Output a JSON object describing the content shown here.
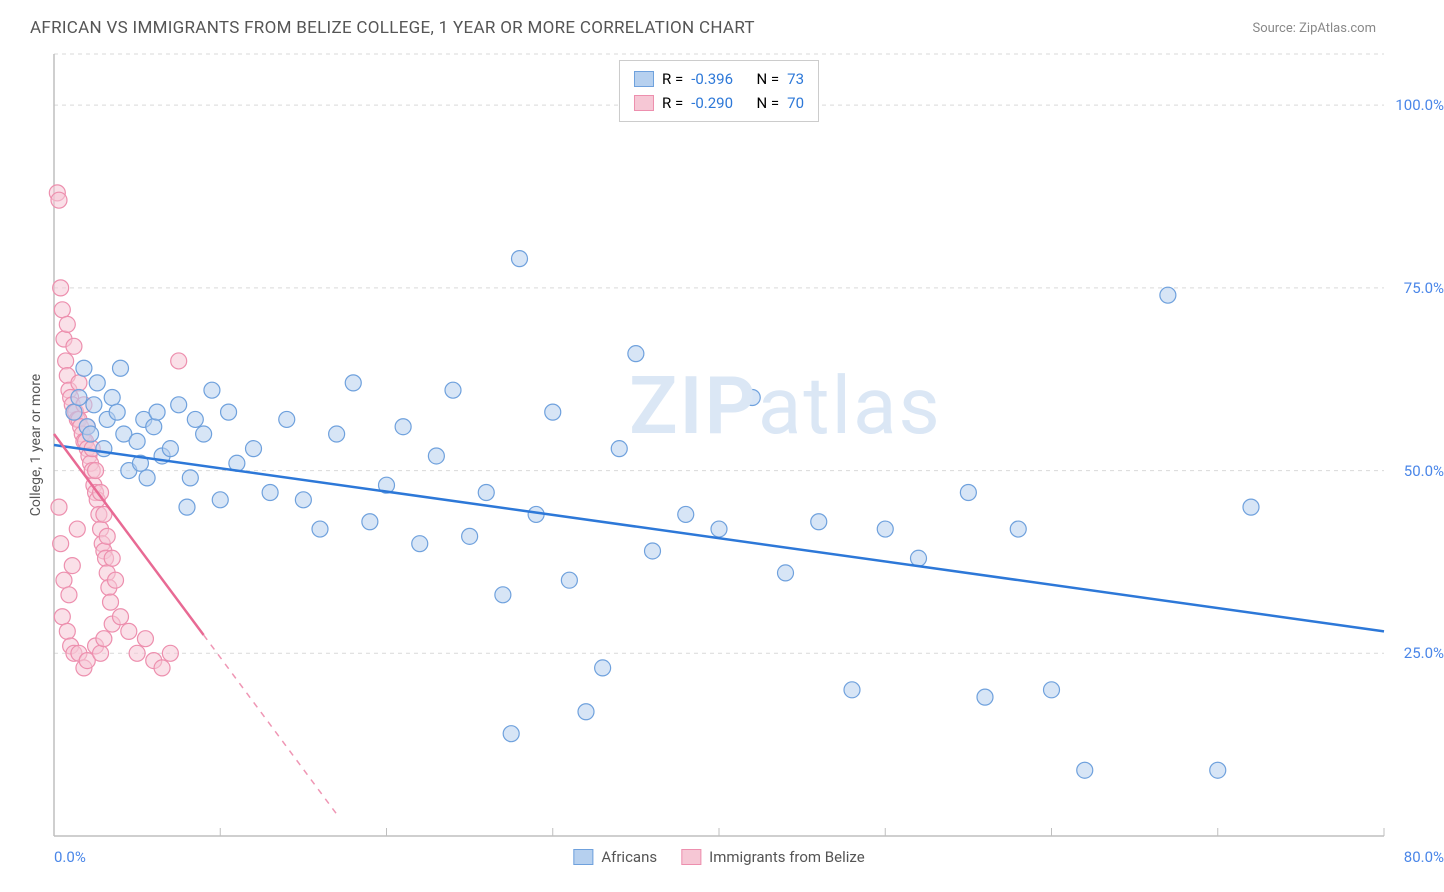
{
  "header": {
    "title": "AFRICAN VS IMMIGRANTS FROM BELIZE COLLEGE, 1 YEAR OR MORE CORRELATION CHART",
    "source": "Source: ZipAtlas.com"
  },
  "chart": {
    "type": "scatter",
    "ylabel": "College, 1 year or more",
    "watermark": "ZIPatlas",
    "xlim": [
      0,
      80
    ],
    "ylim": [
      0,
      107
    ],
    "xtick_labels": [
      {
        "pos": 0,
        "label": "0.0%"
      },
      {
        "pos": 80,
        "label": "80.0%"
      }
    ],
    "xtick_marks": [
      0,
      10,
      20,
      30,
      40,
      50,
      60,
      70,
      80
    ],
    "ytick_labels": [
      {
        "pos": 25,
        "label": "25.0%"
      },
      {
        "pos": 50,
        "label": "50.0%"
      },
      {
        "pos": 75,
        "label": "75.0%"
      },
      {
        "pos": 100,
        "label": "100.0%"
      }
    ],
    "grid_y": [
      25,
      50,
      75,
      100,
      107
    ],
    "grid_color": "#d9d9d9",
    "axis_color": "#bfbfbf",
    "background_color": "#ffffff",
    "marker_radius": 8,
    "marker_opacity": 0.55,
    "line_width": 2.5,
    "series": [
      {
        "name": "Africans",
        "color_fill": "#b6d0ef",
        "color_stroke": "#6fa1dd",
        "line_color": "#2d78d8",
        "R": "-0.396",
        "N": "73",
        "regression": {
          "x1": 0,
          "y1": 53.5,
          "x2": 80,
          "y2": 28
        },
        "points": [
          [
            1.2,
            58
          ],
          [
            1.5,
            60
          ],
          [
            1.8,
            64
          ],
          [
            2,
            56
          ],
          [
            2.2,
            55
          ],
          [
            2.4,
            59
          ],
          [
            2.6,
            62
          ],
          [
            3,
            53
          ],
          [
            3.2,
            57
          ],
          [
            3.5,
            60
          ],
          [
            3.8,
            58
          ],
          [
            4,
            64
          ],
          [
            4.2,
            55
          ],
          [
            4.5,
            50
          ],
          [
            5,
            54
          ],
          [
            5.2,
            51
          ],
          [
            5.4,
            57
          ],
          [
            5.6,
            49
          ],
          [
            6,
            56
          ],
          [
            6.2,
            58
          ],
          [
            6.5,
            52
          ],
          [
            7,
            53
          ],
          [
            7.5,
            59
          ],
          [
            8,
            45
          ],
          [
            8.2,
            49
          ],
          [
            8.5,
            57
          ],
          [
            9,
            55
          ],
          [
            9.5,
            61
          ],
          [
            10,
            46
          ],
          [
            10.5,
            58
          ],
          [
            11,
            51
          ],
          [
            12,
            53
          ],
          [
            13,
            47
          ],
          [
            14,
            57
          ],
          [
            15,
            46
          ],
          [
            16,
            42
          ],
          [
            17,
            55
          ],
          [
            18,
            62
          ],
          [
            19,
            43
          ],
          [
            20,
            48
          ],
          [
            21,
            56
          ],
          [
            22,
            40
          ],
          [
            23,
            52
          ],
          [
            24,
            61
          ],
          [
            25,
            41
          ],
          [
            26,
            47
          ],
          [
            27,
            33
          ],
          [
            28,
            79
          ],
          [
            29,
            44
          ],
          [
            30,
            58
          ],
          [
            31,
            35
          ],
          [
            32,
            17
          ],
          [
            33,
            23
          ],
          [
            34,
            53
          ],
          [
            35,
            66
          ],
          [
            36,
            39
          ],
          [
            38,
            44
          ],
          [
            40,
            42
          ],
          [
            42,
            60
          ],
          [
            44,
            36
          ],
          [
            46,
            43
          ],
          [
            48,
            20
          ],
          [
            50,
            42
          ],
          [
            52,
            38
          ],
          [
            55,
            47
          ],
          [
            56,
            19
          ],
          [
            58,
            42
          ],
          [
            60,
            20
          ],
          [
            62,
            9
          ],
          [
            67,
            74
          ],
          [
            70,
            9
          ],
          [
            72,
            45
          ],
          [
            27.5,
            14
          ]
        ]
      },
      {
        "name": "Immigrants from Belize",
        "color_fill": "#f6c7d5",
        "color_stroke": "#ed8fae",
        "line_color": "#e86a94",
        "R": "-0.290",
        "N": "70",
        "regression_solid": {
          "x1": 0,
          "y1": 55,
          "x2": 9,
          "y2": 27.5
        },
        "regression_dash": {
          "x1": 9,
          "y1": 27.5,
          "x2": 17,
          "y2": 3
        },
        "points": [
          [
            0.2,
            88
          ],
          [
            0.3,
            87
          ],
          [
            0.5,
            72
          ],
          [
            0.6,
            68
          ],
          [
            0.7,
            65
          ],
          [
            0.8,
            63
          ],
          [
            0.9,
            61
          ],
          [
            1.0,
            60
          ],
          [
            1.1,
            59
          ],
          [
            1.2,
            58
          ],
          [
            1.3,
            58
          ],
          [
            1.4,
            57
          ],
          [
            1.5,
            57
          ],
          [
            1.6,
            56
          ],
          [
            1.7,
            55
          ],
          [
            1.8,
            54
          ],
          [
            1.9,
            54
          ],
          [
            2.0,
            53
          ],
          [
            2.1,
            52
          ],
          [
            2.2,
            51
          ],
          [
            2.3,
            50
          ],
          [
            2.4,
            48
          ],
          [
            2.5,
            47
          ],
          [
            2.6,
            46
          ],
          [
            2.7,
            44
          ],
          [
            2.8,
            42
          ],
          [
            2.9,
            40
          ],
          [
            3.0,
            39
          ],
          [
            3.1,
            38
          ],
          [
            3.2,
            36
          ],
          [
            3.3,
            34
          ],
          [
            3.4,
            32
          ],
          [
            0.4,
            75
          ],
          [
            0.8,
            70
          ],
          [
            1.2,
            67
          ],
          [
            1.5,
            62
          ],
          [
            1.8,
            59
          ],
          [
            2.0,
            56
          ],
          [
            2.3,
            53
          ],
          [
            2.5,
            50
          ],
          [
            2.8,
            47
          ],
          [
            3.0,
            44
          ],
          [
            3.2,
            41
          ],
          [
            3.5,
            38
          ],
          [
            3.7,
            35
          ],
          [
            0.5,
            30
          ],
          [
            0.8,
            28
          ],
          [
            1.0,
            26
          ],
          [
            1.2,
            25
          ],
          [
            1.5,
            25
          ],
          [
            1.8,
            23
          ],
          [
            2.0,
            24
          ],
          [
            2.5,
            26
          ],
          [
            2.8,
            25
          ],
          [
            3.0,
            27
          ],
          [
            3.5,
            29
          ],
          [
            4.0,
            30
          ],
          [
            4.5,
            28
          ],
          [
            5.0,
            25
          ],
          [
            5.5,
            27
          ],
          [
            6.0,
            24
          ],
          [
            6.5,
            23
          ],
          [
            7.0,
            25
          ],
          [
            7.5,
            65
          ],
          [
            0.3,
            45
          ],
          [
            0.4,
            40
          ],
          [
            0.6,
            35
          ],
          [
            0.9,
            33
          ],
          [
            1.1,
            37
          ],
          [
            1.4,
            42
          ]
        ]
      }
    ],
    "legend_top": {
      "r_label": "R =",
      "n_label": "N =",
      "r_color": "#2d78d8",
      "n_color": "#2d78d8"
    },
    "legend_bottom": [
      {
        "label": "Africans",
        "fill": "#b6d0ef",
        "stroke": "#6fa1dd"
      },
      {
        "label": "Immigrants from Belize",
        "fill": "#f6c7d5",
        "stroke": "#ed8fae"
      }
    ]
  }
}
